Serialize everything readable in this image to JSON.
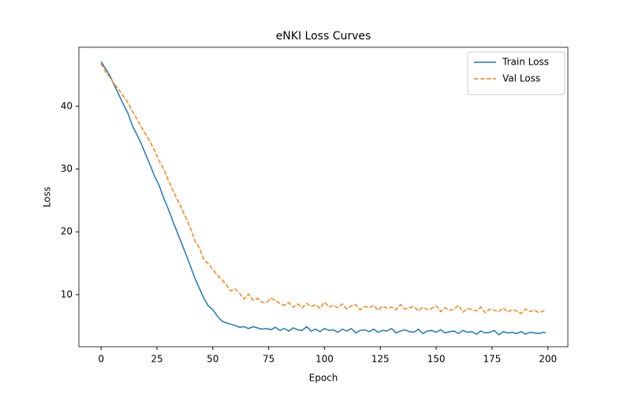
{
  "chart_data": {
    "type": "line",
    "title": "eNKI Loss Curves",
    "x_label": "Epoch",
    "y_label": "Loss",
    "x": [
      0,
      2,
      4,
      6,
      8,
      10,
      12,
      14,
      16,
      18,
      20,
      22,
      24,
      26,
      28,
      30,
      32,
      34,
      36,
      38,
      40,
      42,
      44,
      46,
      48,
      50,
      52,
      54,
      56,
      58,
      60,
      62,
      64,
      66,
      68,
      70,
      72,
      74,
      76,
      78,
      80,
      82,
      84,
      86,
      88,
      90,
      92,
      94,
      96,
      98,
      100,
      102,
      104,
      106,
      108,
      110,
      112,
      114,
      116,
      118,
      120,
      122,
      124,
      126,
      128,
      130,
      132,
      134,
      136,
      138,
      140,
      142,
      144,
      146,
      148,
      150,
      152,
      154,
      156,
      158,
      160,
      162,
      164,
      166,
      168,
      170,
      172,
      174,
      176,
      178,
      180,
      182,
      184,
      186,
      188,
      190,
      192,
      194,
      196,
      198,
      199
    ],
    "series": [
      {
        "name": "Train Loss",
        "color": "#1f77b4",
        "dashed": false,
        "values": [
          47.1,
          46.0,
          44.8,
          43.3,
          41.8,
          40.3,
          38.9,
          36.9,
          35.5,
          34.0,
          32.3,
          30.6,
          28.8,
          27.4,
          25.4,
          23.7,
          21.8,
          20.0,
          18.2,
          16.4,
          14.5,
          12.6,
          11.0,
          9.4,
          8.2,
          7.6,
          6.6,
          5.8,
          5.5,
          5.3,
          5.1,
          4.8,
          4.9,
          4.6,
          4.9,
          4.7,
          4.5,
          4.6,
          4.4,
          4.8,
          4.3,
          4.6,
          4.2,
          4.7,
          4.4,
          4.3,
          4.9,
          4.2,
          4.5,
          4.1,
          4.6,
          4.3,
          4.4,
          4.0,
          4.5,
          4.2,
          4.6,
          3.9,
          4.3,
          4.4,
          4.1,
          4.5,
          4.0,
          4.3,
          4.2,
          4.6,
          3.9,
          4.2,
          4.4,
          4.1,
          4.0,
          4.5,
          3.8,
          4.2,
          4.3,
          4.0,
          4.4,
          3.9,
          4.1,
          4.2,
          3.8,
          4.3,
          4.0,
          4.1,
          3.7,
          4.2,
          3.9,
          4.0,
          4.3,
          3.6,
          4.1,
          3.9,
          4.0,
          3.8,
          4.1,
          3.7,
          4.0,
          3.9,
          3.8,
          4.0,
          3.9
        ]
      },
      {
        "name": "Val Loss",
        "color": "#ff7f0e",
        "dashed": true,
        "values": [
          46.8,
          45.5,
          44.6,
          43.5,
          42.6,
          41.6,
          40.6,
          39.2,
          38.0,
          36.7,
          35.5,
          34.3,
          32.9,
          31.3,
          30.0,
          28.3,
          26.7,
          25.2,
          23.8,
          22.2,
          20.6,
          18.6,
          17.4,
          15.6,
          14.9,
          14.0,
          13.1,
          12.4,
          11.6,
          10.6,
          10.9,
          10.2,
          9.3,
          10.1,
          9.1,
          9.4,
          8.8,
          8.7,
          9.4,
          9.1,
          8.6,
          8.3,
          8.7,
          8.0,
          8.5,
          7.9,
          8.6,
          8.1,
          8.4,
          7.8,
          8.8,
          8.0,
          8.3,
          7.9,
          8.5,
          7.7,
          8.2,
          8.4,
          7.6,
          8.1,
          7.9,
          8.3,
          7.5,
          8.2,
          7.8,
          8.0,
          7.6,
          8.4,
          7.7,
          7.9,
          8.1,
          7.4,
          8.0,
          7.6,
          7.8,
          8.2,
          7.3,
          7.9,
          7.5,
          7.7,
          8.3,
          7.2,
          7.8,
          7.6,
          7.4,
          8.0,
          7.1,
          7.7,
          7.5,
          7.3,
          7.9,
          7.2,
          7.6,
          7.4,
          7.0,
          7.7,
          7.3,
          7.5,
          7.1,
          7.4,
          7.5
        ]
      }
    ],
    "xlim": [
      -9.95,
      208.95
    ],
    "ylim": [
      1.7,
      49.4
    ],
    "xticks": [
      0,
      25,
      50,
      75,
      100,
      125,
      150,
      175,
      200
    ],
    "yticks": [
      10,
      20,
      30,
      40
    ],
    "grid": false,
    "legend": "upper right"
  }
}
